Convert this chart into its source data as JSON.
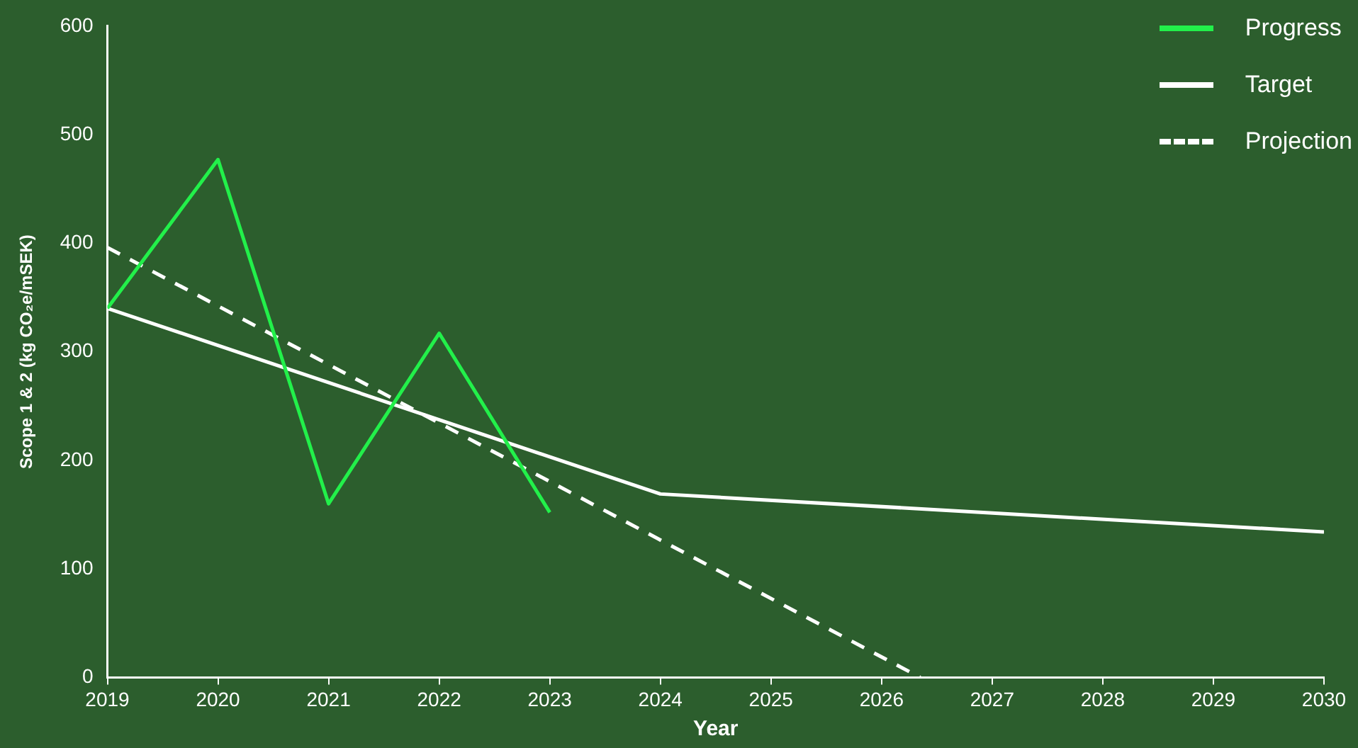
{
  "chart_data": {
    "type": "line",
    "xlabel": "Year",
    "ylabel": "Scope 1 & 2 (kg CO₂e/mSEK)",
    "x": [
      2019,
      2020,
      2021,
      2022,
      2023
    ],
    "xlim": [
      2019,
      2030
    ],
    "xticks": [
      2019,
      2020,
      2021,
      2022,
      2023,
      2024,
      2025,
      2026,
      2027,
      2028,
      2029,
      2030
    ],
    "ylim": [
      0,
      600
    ],
    "yticks": [
      0,
      100,
      200,
      300,
      400,
      500,
      600
    ],
    "legend": "top right",
    "marker": "none",
    "series": [
      {
        "name": "Progress",
        "color": "#22f04a",
        "values": [
          340,
          477,
          160,
          317,
          152
        ]
      },
      {
        "name": "Target",
        "color": "#ffffff",
        "x": [
          2019,
          2024,
          2030
        ],
        "values": [
          340,
          169,
          134
        ]
      },
      {
        "name": "Projection",
        "color": "#ffffff",
        "line_style": "dashed",
        "x": [
          2019,
          2026.35
        ],
        "values": [
          396,
          0
        ]
      }
    ]
  }
}
